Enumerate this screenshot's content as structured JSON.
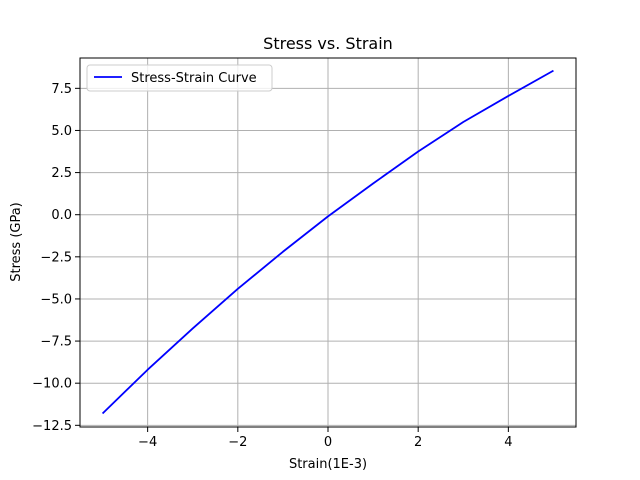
{
  "chart_data": {
    "type": "line",
    "title": "Stress vs. Strain",
    "xlabel": "Strain(1E-3)",
    "ylabel": "Stress (GPa)",
    "xlim": [
      -5.5,
      5.5
    ],
    "ylim": [
      -12.6,
      9.3
    ],
    "xticks": [
      -4,
      -2,
      0,
      2,
      4
    ],
    "xtick_labels": [
      "−4",
      "−2",
      "0",
      "2",
      "4"
    ],
    "yticks": [
      -12.5,
      -10.0,
      -7.5,
      -5.0,
      -2.5,
      0.0,
      2.5,
      5.0,
      7.5
    ],
    "ytick_labels": [
      "−12.5",
      "−10.0",
      "−7.5",
      "−5.0",
      "−2.5",
      "0.0",
      "2.5",
      "5.0",
      "7.5"
    ],
    "grid": true,
    "legend_position": "upper-left",
    "series": [
      {
        "name": "Stress-Strain Curve",
        "color": "#0000ff",
        "x": [
          -5,
          -4,
          -3,
          -2,
          -1,
          0,
          1,
          2,
          3,
          4,
          5
        ],
        "y": [
          -11.8,
          -9.2,
          -6.75,
          -4.4,
          -2.2,
          -0.1,
          1.85,
          3.75,
          5.5,
          7.05,
          8.55
        ]
      }
    ]
  }
}
